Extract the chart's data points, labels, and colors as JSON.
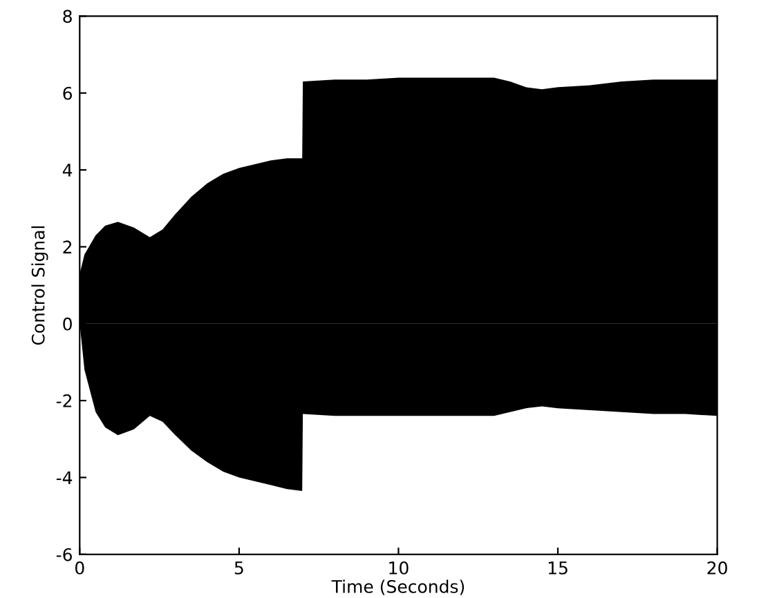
{
  "chart_data": {
    "type": "area",
    "xlabel": "Time (Seconds)",
    "ylabel": "Control Signal",
    "xlim": [
      0,
      20
    ],
    "ylim": [
      -6,
      8
    ],
    "xticks": [
      0,
      5,
      10,
      15,
      20
    ],
    "yticks": [
      -6,
      -4,
      -2,
      0,
      2,
      4,
      6,
      8
    ],
    "series": [
      {
        "color": "#000000",
        "x": [
          0,
          0.15,
          0.5,
          0.8,
          1.2,
          1.7,
          2.2,
          2.6,
          3.0,
          3.5,
          4.0,
          4.5,
          5.0,
          5.5,
          6.0,
          6.5,
          6.98,
          7.0,
          8,
          9,
          10,
          11,
          12,
          13,
          13.5,
          14,
          14.5,
          15,
          16,
          17,
          18,
          19,
          20
        ],
        "values": [
          1.3,
          1.8,
          2.3,
          2.55,
          2.65,
          2.5,
          2.25,
          2.45,
          2.85,
          3.3,
          3.65,
          3.9,
          4.05,
          4.15,
          4.25,
          4.3,
          4.3,
          6.3,
          6.35,
          6.35,
          6.4,
          6.4,
          6.4,
          6.4,
          6.3,
          6.15,
          6.1,
          6.15,
          6.2,
          6.3,
          6.35,
          6.35,
          6.35
        ]
      },
      {
        "color": "#000000",
        "x": [
          0,
          0.15,
          0.5,
          0.8,
          1.2,
          1.7,
          2.2,
          2.6,
          3.0,
          3.5,
          4.0,
          4.5,
          5.0,
          5.5,
          6.0,
          6.5,
          6.98,
          7.0,
          8,
          9,
          10,
          11,
          12,
          13,
          13.5,
          14,
          14.5,
          15,
          16,
          17,
          18,
          19,
          20
        ],
        "values": [
          0,
          -1.2,
          -2.3,
          -2.7,
          -2.9,
          -2.75,
          -2.4,
          -2.55,
          -2.9,
          -3.3,
          -3.6,
          -3.85,
          -4.0,
          -4.1,
          -4.2,
          -4.3,
          -4.35,
          -2.35,
          -2.4,
          -2.4,
          -2.4,
          -2.4,
          -2.4,
          -2.4,
          -2.3,
          -2.2,
          -2.15,
          -2.2,
          -2.25,
          -2.3,
          -2.35,
          -2.35,
          -2.4
        ]
      }
    ]
  }
}
